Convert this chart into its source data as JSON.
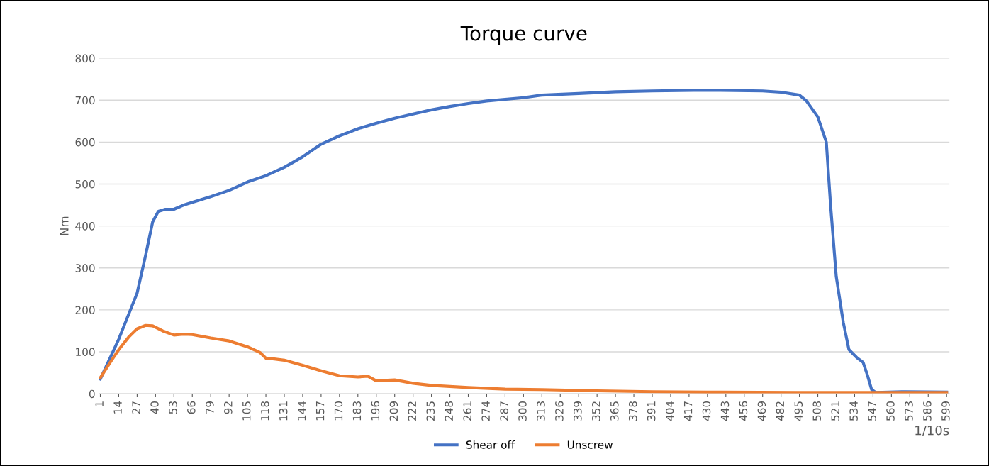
{
  "chart_data": {
    "type": "line",
    "title": "Torque curve",
    "ylabel": "Nm",
    "xlabel": "1/10s",
    "xlim": [
      0,
      601
    ],
    "xticks": [
      1,
      14,
      27,
      40,
      53,
      66,
      79,
      92,
      105,
      118,
      131,
      144,
      157,
      170,
      183,
      196,
      209,
      222,
      235,
      248,
      261,
      274,
      287,
      300,
      313,
      326,
      339,
      352,
      365,
      378,
      391,
      404,
      417,
      430,
      443,
      456,
      469,
      482,
      495,
      508,
      521,
      534,
      547,
      560,
      573,
      586,
      599
    ],
    "ylim": [
      0,
      800
    ],
    "yticks": [
      0,
      100,
      200,
      300,
      400,
      500,
      600,
      700,
      800
    ],
    "grid": "y",
    "legend": "bottom",
    "marker": "none",
    "line_style": "solid",
    "series": [
      {
        "name": "Shear off",
        "color": "#4472c4",
        "x": [
          1,
          14,
          27,
          33,
          38,
          42,
          47,
          53,
          60,
          79,
          92,
          105,
          118,
          131,
          144,
          157,
          170,
          183,
          196,
          209,
          222,
          235,
          248,
          261,
          274,
          300,
          313,
          339,
          365,
          391,
          430,
          469,
          482,
          495,
          500,
          508,
          514,
          517,
          521,
          526,
          530,
          536,
          540,
          543,
          546,
          549,
          570,
          599
        ],
        "values": [
          35,
          130,
          240,
          330,
          410,
          435,
          440,
          440,
          450,
          470,
          485,
          505,
          520,
          540,
          565,
          595,
          615,
          632,
          645,
          657,
          667,
          677,
          685,
          692,
          698,
          706,
          712,
          716,
          720,
          722,
          724,
          722,
          719,
          712,
          698,
          660,
          600,
          450,
          280,
          170,
          105,
          85,
          75,
          45,
          10,
          3,
          5,
          4
        ]
      },
      {
        "name": "Unscrew",
        "color": "#ed7d31",
        "x": [
          1,
          8,
          14,
          21,
          27,
          33,
          38,
          45,
          53,
          60,
          66,
          79,
          92,
          105,
          114,
          118,
          124,
          131,
          144,
          157,
          170,
          183,
          190,
          196,
          209,
          222,
          235,
          261,
          287,
          313,
          352,
          391,
          430,
          495,
          599
        ],
        "values": [
          38,
          75,
          105,
          135,
          155,
          163,
          162,
          150,
          140,
          142,
          141,
          133,
          126,
          112,
          98,
          85,
          83,
          80,
          68,
          55,
          43,
          40,
          42,
          31,
          33,
          25,
          20,
          15,
          11,
          10,
          7,
          5,
          4,
          3,
          3
        ]
      }
    ]
  }
}
